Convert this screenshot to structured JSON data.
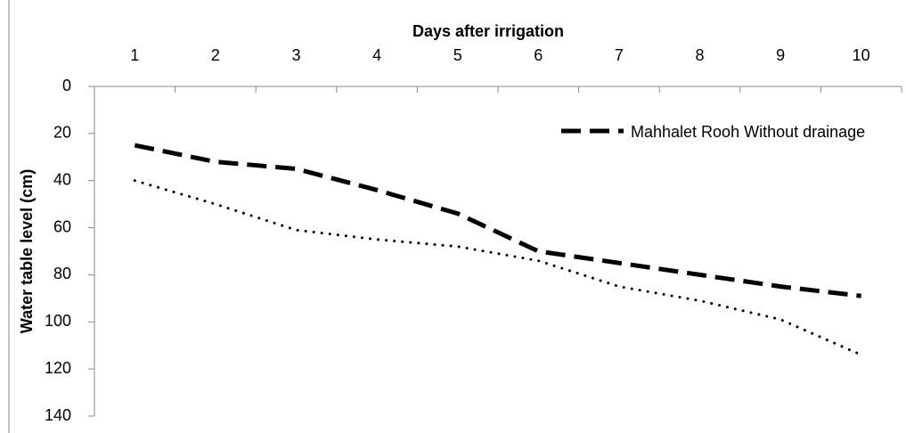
{
  "chart_data": {
    "type": "line",
    "x_label": "Days after irrigation",
    "y_label": "Water table level (cm)",
    "categories": [
      "1",
      "2",
      "3",
      "4",
      "5",
      "6",
      "7",
      "8",
      "9",
      "10"
    ],
    "x_axis_position": "top",
    "y_inverted": true,
    "ylim": [
      0,
      140
    ],
    "yticks": [
      0,
      20,
      40,
      60,
      80,
      100,
      120,
      140
    ],
    "grid": false,
    "legend": "top-right",
    "series": [
      {
        "name": "Mahhalet Rooh Without drainage",
        "color": "#000000",
        "style": "dashed",
        "values": [
          25,
          32,
          35,
          44,
          54,
          70,
          75,
          80,
          85,
          89
        ]
      },
      {
        "color": "#000000",
        "style": "dotted",
        "values": [
          40,
          50,
          61,
          65,
          68,
          74,
          85,
          91,
          99,
          114
        ]
      }
    ]
  }
}
